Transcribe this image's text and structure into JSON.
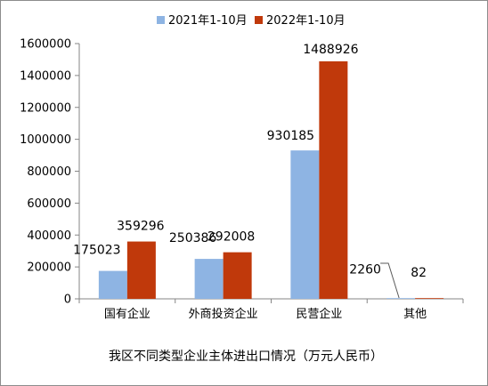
{
  "colors": {
    "series_2021": "#8eb4e3",
    "series_2022": "#c0390b",
    "axis": "#868686",
    "text": "#000000"
  },
  "chart_data": {
    "type": "bar",
    "title": "我区不同类型企业主体进出口情况（万元人民币）",
    "legend_position": "top",
    "categories": [
      "国有企业",
      "外商投资企业",
      "民营企业",
      "其他"
    ],
    "series": [
      {
        "name": "2021年1-10月",
        "values": [
          175023,
          250386,
          930185,
          2260
        ]
      },
      {
        "name": "2022年1-10月",
        "values": [
          359296,
          292008,
          1488926,
          82
        ]
      }
    ],
    "data_labels": [
      [
        "175023",
        "250386",
        "930185",
        "2260"
      ],
      [
        "359296",
        "292008",
        "1488926",
        "82"
      ]
    ],
    "y_ticks": [
      "0",
      "200000",
      "400000",
      "600000",
      "800000",
      "1000000",
      "1200000",
      "1400000",
      "1600000"
    ],
    "ylim": [
      0,
      1600000
    ],
    "grid": false
  }
}
